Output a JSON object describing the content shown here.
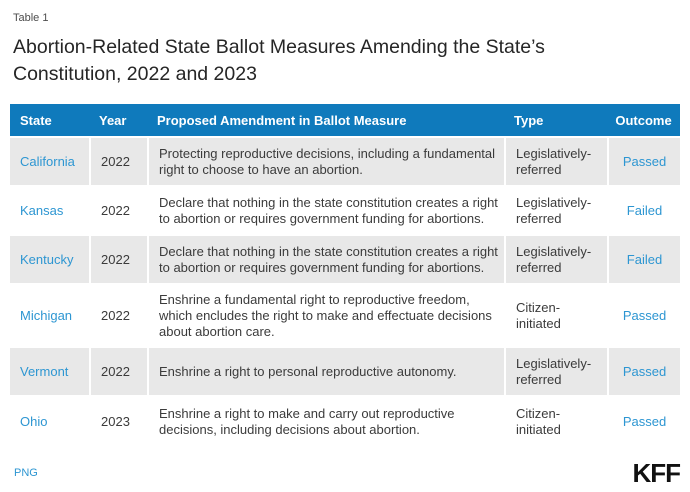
{
  "page": {
    "table_label": "Table 1",
    "title": "Abortion-Related State Ballot Measures Amending the State’s Constitution, 2022 and 2023"
  },
  "chart_data": {
    "type": "table",
    "title": "Abortion-Related State Ballot Measures Amending the State’s Constitution, 2022 and 2023",
    "columns": [
      "State",
      "Year",
      "Proposed Amendment in Ballot Measure",
      "Type",
      "Outcome"
    ],
    "rows": [
      {
        "state": "California",
        "year": "2022",
        "amendment": "Protecting reproductive decisions, including a fundamental right to choose to have an abortion.",
        "type": "Legislatively-referred",
        "outcome": "Passed"
      },
      {
        "state": "Kansas",
        "year": "2022",
        "amendment": "Declare that nothing in the state constitution creates a right to abortion or requires government funding for abortions.",
        "type": "Legislatively-referred",
        "outcome": "Failed"
      },
      {
        "state": "Kentucky",
        "year": "2022",
        "amendment": "Declare that nothing in the state constitution creates a right to abortion or requires government funding for abortions.",
        "type": "Legislatively-referred",
        "outcome": "Failed"
      },
      {
        "state": "Michigan",
        "year": "2022",
        "amendment": "Enshrine a fundamental right to reproductive freedom, which encludes the right to make and effectuate decisions about abortion care.",
        "type": "Citizen-initiated",
        "outcome": "Passed"
      },
      {
        "state": "Vermont",
        "year": "2022",
        "amendment": "Enshrine a right to personal reproductive autonomy.",
        "type": "Legislatively-referred",
        "outcome": "Passed"
      },
      {
        "state": "Ohio",
        "year": "2023",
        "amendment": "Enshrine a right to make and carry out reproductive decisions, including decisions about abortion.",
        "type": "Citizen-initiated",
        "outcome": "Passed"
      }
    ]
  },
  "footer": {
    "png_label": "PNG",
    "logo_text": "KFF"
  },
  "colors": {
    "header_bg": "#0f7abc",
    "link": "#2d96d2",
    "row_shaded": "#e8e8e8",
    "text": "#3b3b3b",
    "title": "#262626",
    "label": "#4d4d4d",
    "logo": "#111111"
  }
}
